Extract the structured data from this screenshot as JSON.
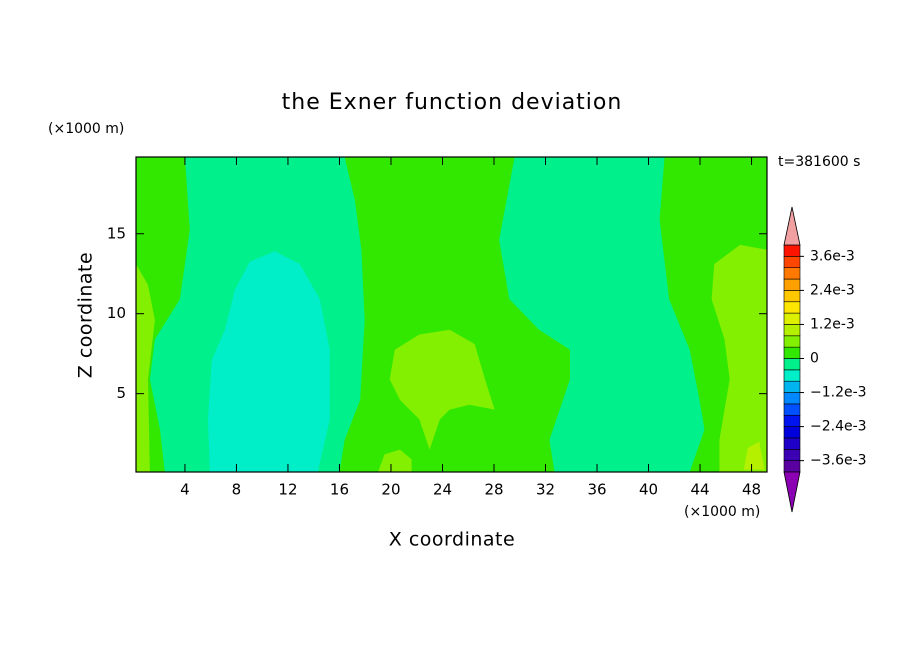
{
  "chart_data": {
    "type": "contour",
    "title": "the Exner function deviation",
    "x_label": "X coordinate",
    "y_label": "Z coordinate",
    "x_unit": "(×1000 m)",
    "y_unit": "(×1000 m)",
    "time_label": "t=381600 s",
    "xlim": [
      0.2,
      49.2
    ],
    "ylim": [
      0.1,
      19.8
    ],
    "xticks": [
      4,
      8,
      12,
      16,
      20,
      24,
      28,
      32,
      36,
      40,
      44,
      48
    ],
    "yticks": [
      5,
      10,
      15
    ],
    "levels": [
      -0.004,
      -0.0036,
      -0.0032,
      -0.0028,
      -0.0024,
      -0.002,
      -0.0016,
      -0.0012,
      -0.0008,
      -0.0004,
      0,
      0.0004,
      0.0008,
      0.0012,
      0.0016,
      0.002,
      0.0024,
      0.0028,
      0.0032,
      0.0036,
      0.004
    ],
    "colors": [
      "#5a00a0",
      "#3c00b4",
      "#1e00c8",
      "#0000dc",
      "#0014f0",
      "#0050ff",
      "#0088ff",
      "#00b4f0",
      "#00eec8",
      "#00f08c",
      "#33e800",
      "#82f000",
      "#b4f000",
      "#dcf000",
      "#ffe600",
      "#ffc800",
      "#ffa000",
      "#ff7800",
      "#ff4600",
      "#ff1400"
    ],
    "over_color": "#f0a0a0",
    "under_color": "#8c00b4",
    "colorbar_ticks": [
      {
        "value": 0.0036,
        "label": "3.6e-3"
      },
      {
        "value": 0.0024,
        "label": "2.4e-3"
      },
      {
        "value": 0.0012,
        "label": "1.2e-3"
      },
      0,
      {
        "value": -0.0012,
        "label": "−1.2e-3"
      },
      {
        "value": -0.0024,
        "label": "−2.4e-3"
      },
      {
        "value": -0.0036,
        "label": "−3.6e-3"
      }
    ],
    "regions": [
      {
        "value": 0,
        "points": [
          [
            0.2,
            0.1
          ],
          [
            49.2,
            0.1
          ],
          [
            49.2,
            19.8
          ],
          [
            0.2,
            19.8
          ]
        ]
      },
      {
        "value": -0.0004,
        "points": [
          [
            4.0,
            19.8
          ],
          [
            16.4,
            19.8
          ],
          [
            17.2,
            17.1
          ],
          [
            17.7,
            14.0
          ],
          [
            17.96,
            9.6
          ],
          [
            17.6,
            4.6
          ],
          [
            16.4,
            2.1
          ],
          [
            16.0,
            0.1
          ],
          [
            2.44,
            0.1
          ],
          [
            2.06,
            2.75
          ],
          [
            1.28,
            5.9
          ],
          [
            1.67,
            8.4
          ],
          [
            3.61,
            10.9
          ],
          [
            4.38,
            15.25
          ]
        ]
      },
      {
        "value": -0.0008,
        "points": [
          [
            5.94,
            0.1
          ],
          [
            5.78,
            3.4
          ],
          [
            6.09,
            7.1
          ],
          [
            7.1,
            9.0
          ],
          [
            7.88,
            11.5
          ],
          [
            9.04,
            13.25
          ],
          [
            10.98,
            13.9
          ],
          [
            12.92,
            13.1
          ],
          [
            14.47,
            10.9
          ],
          [
            15.25,
            7.75
          ],
          [
            15.25,
            3.4
          ],
          [
            14.32,
            0.1
          ]
        ]
      },
      {
        "value": -0.0004,
        "points": [
          [
            29.6,
            19.8
          ],
          [
            41.25,
            19.8
          ],
          [
            40.86,
            15.9
          ],
          [
            41.6,
            10.9
          ],
          [
            43.2,
            7.75
          ],
          [
            43.96,
            4.6
          ],
          [
            44.35,
            2.75
          ],
          [
            43.2,
            0.1
          ],
          [
            32.7,
            0.1
          ],
          [
            32.3,
            2.1
          ],
          [
            33.9,
            5.9
          ],
          [
            33.9,
            7.75
          ],
          [
            31.5,
            9.0
          ],
          [
            29.2,
            10.9
          ],
          [
            28.4,
            14.6
          ]
        ]
      },
      {
        "value": 0.0004,
        "points": [
          [
            20.3,
            7.75
          ],
          [
            22.2,
            8.7
          ],
          [
            24.56,
            9.0
          ],
          [
            26.5,
            8.1
          ],
          [
            27.3,
            5.9
          ],
          [
            28.05,
            4.0
          ],
          [
            26.1,
            4.3
          ],
          [
            24.56,
            4.0
          ],
          [
            23.8,
            3.4
          ],
          [
            23.0,
            1.5
          ],
          [
            22.2,
            3.4
          ],
          [
            20.7,
            4.6
          ],
          [
            19.9,
            5.9
          ]
        ]
      },
      {
        "value": 0.0004,
        "points": [
          [
            0.2,
            13.1
          ],
          [
            1.13,
            11.8
          ],
          [
            1.67,
            9.6
          ],
          [
            1.13,
            5.9
          ],
          [
            1.28,
            0.1
          ],
          [
            0.2,
            0.1
          ]
        ]
      },
      {
        "value": 0.0004,
        "points": [
          [
            49.2,
            14.0
          ],
          [
            47.1,
            14.3
          ],
          [
            45.1,
            13.1
          ],
          [
            44.9,
            10.9
          ],
          [
            45.9,
            8.4
          ],
          [
            46.3,
            5.9
          ],
          [
            45.5,
            2.1
          ],
          [
            45.5,
            0.1
          ],
          [
            49.2,
            0.1
          ]
        ]
      },
      {
        "value": 0.0004,
        "points": [
          [
            19.0,
            0.1
          ],
          [
            19.5,
            1.2
          ],
          [
            20.7,
            1.5
          ],
          [
            21.6,
            0.9
          ],
          [
            21.6,
            0.1
          ]
        ]
      },
      {
        "value": 0.0008,
        "points": [
          [
            47.4,
            0.25
          ],
          [
            47.7,
            1.6
          ],
          [
            48.6,
            2.0
          ],
          [
            49.0,
            0.25
          ]
        ]
      }
    ]
  }
}
